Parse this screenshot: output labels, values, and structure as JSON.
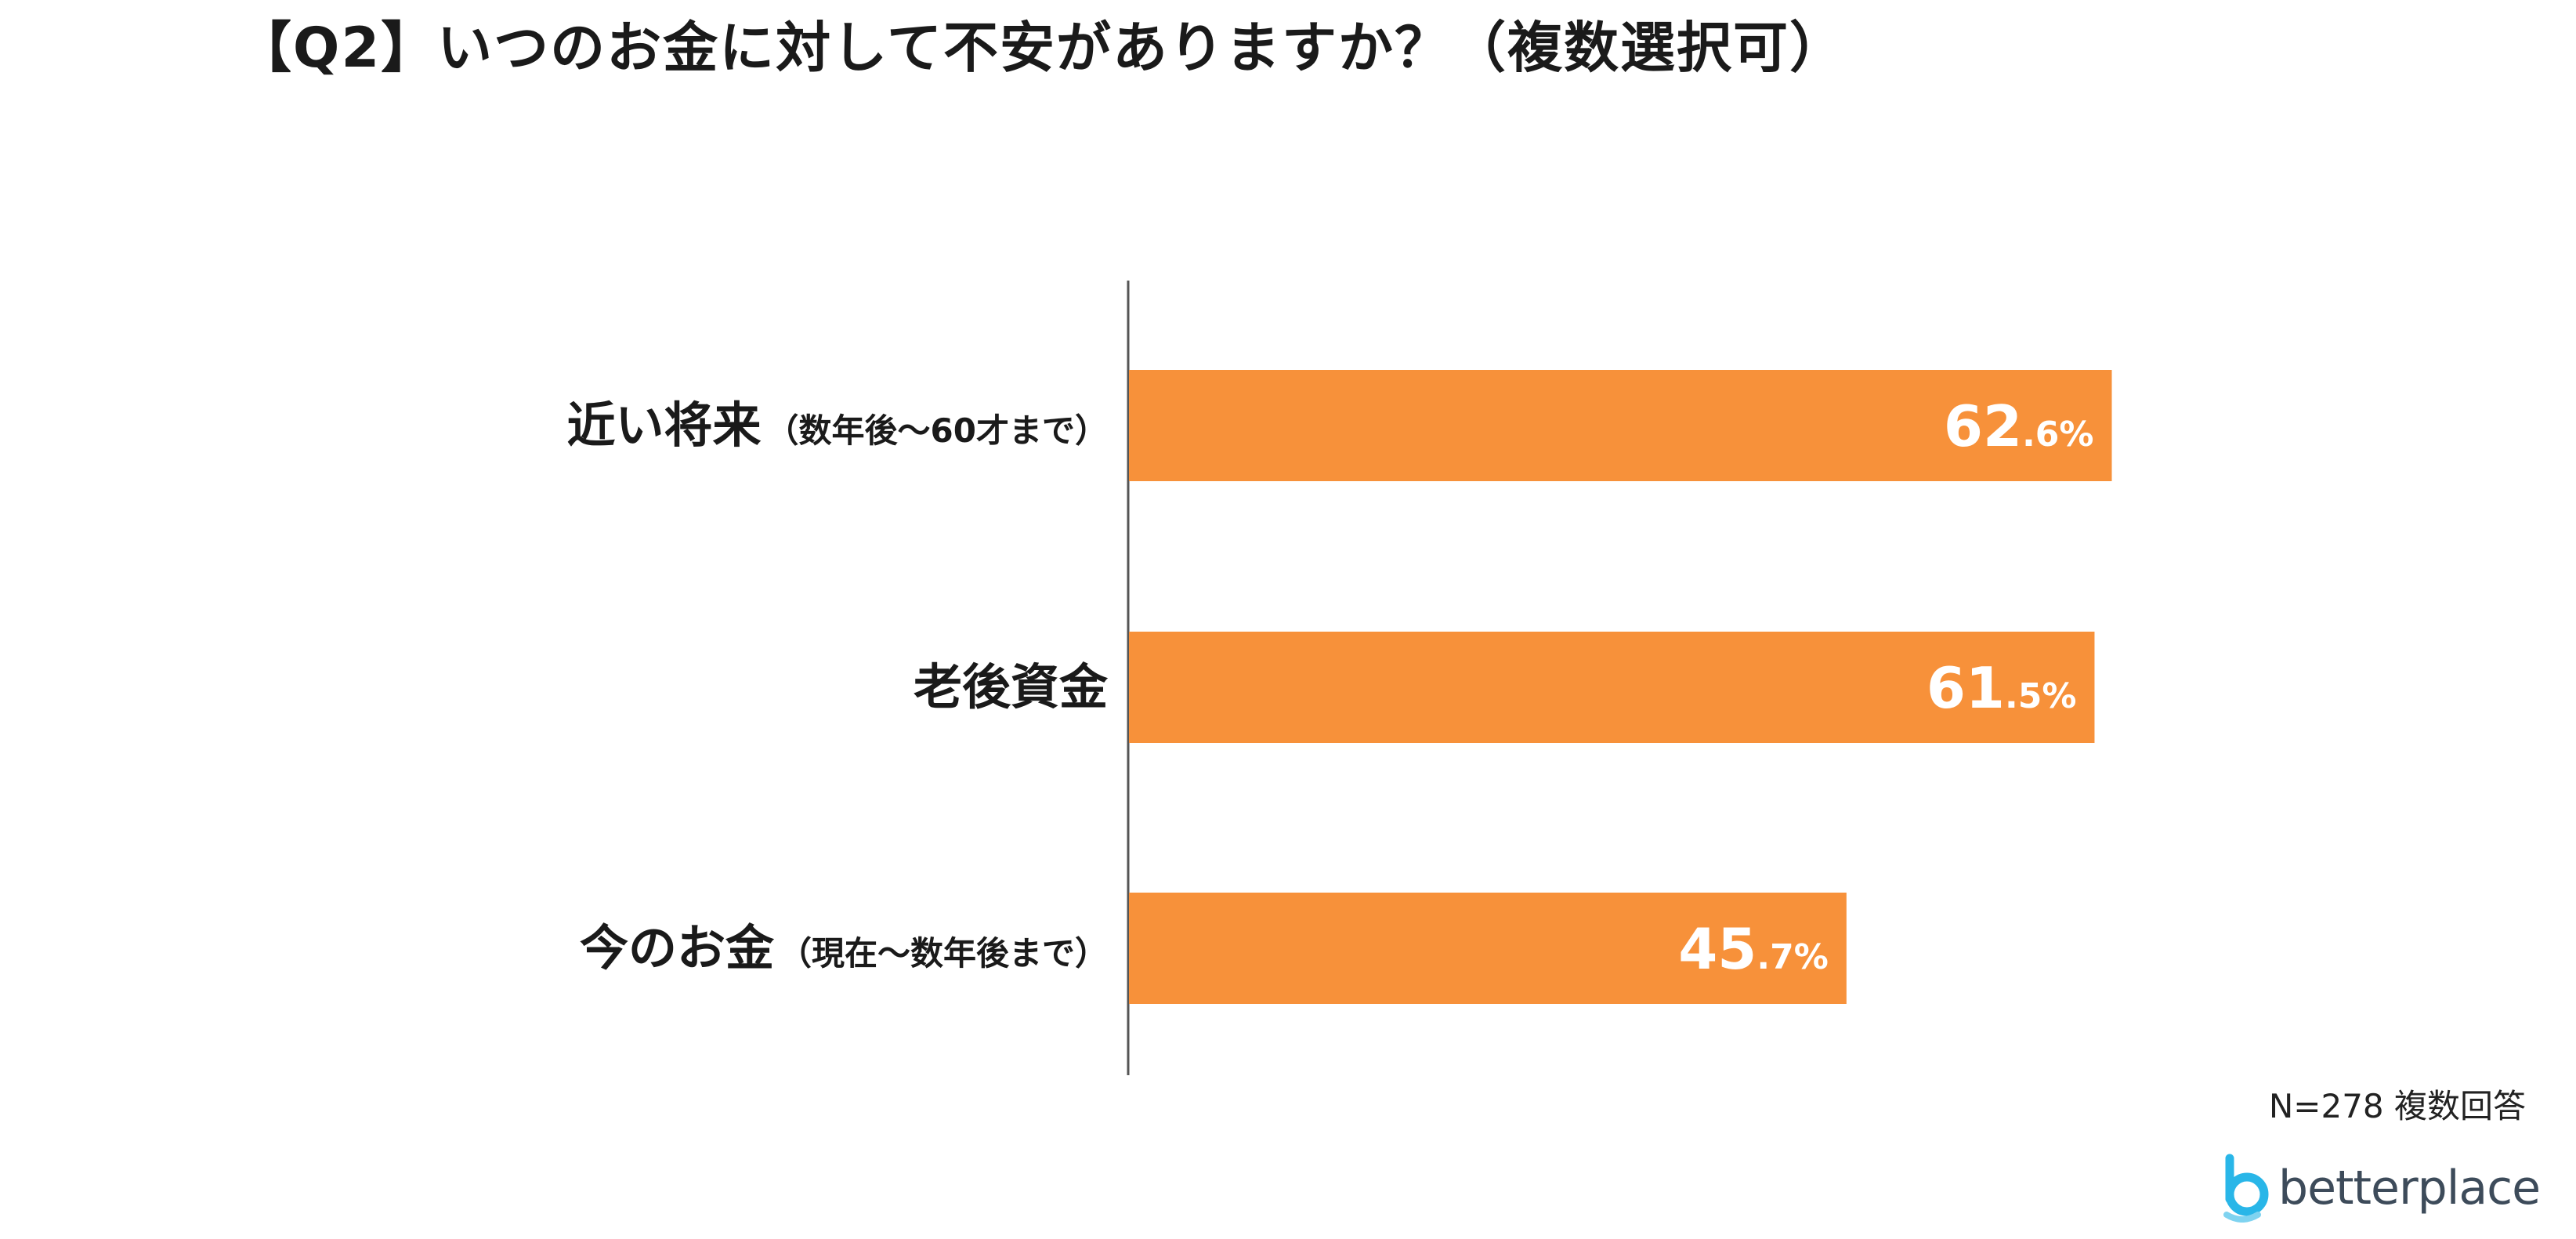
{
  "title": "【Q2】いつのお金に対して不安がありますか？（複数選択可）",
  "footnote": "N=278 複数回答",
  "logo": {
    "text": "betterplace",
    "icon": "betterplace-logo-icon",
    "icon_color": "#29b6e8"
  },
  "colors": {
    "bar": "#f7913a",
    "value_label": "#ffffff",
    "axis": "#555555"
  },
  "chart_data": {
    "type": "bar",
    "orientation": "horizontal",
    "categories": [
      {
        "main": "近い将来",
        "sub": "（数年後～60才まで）"
      },
      {
        "main": "老後資金",
        "sub": ""
      },
      {
        "main": "今のお金",
        "sub": "（現在～数年後まで）"
      }
    ],
    "values": [
      62.6,
      61.5,
      45.7
    ],
    "value_labels": [
      {
        "int": "62",
        "dec": ".6%"
      },
      {
        "int": "61",
        "dec": ".5%"
      },
      {
        "int": "45",
        "dec": ".7%"
      }
    ],
    "unit": "%",
    "xlim": [
      0,
      100
    ],
    "grid": false,
    "legend": "none"
  }
}
